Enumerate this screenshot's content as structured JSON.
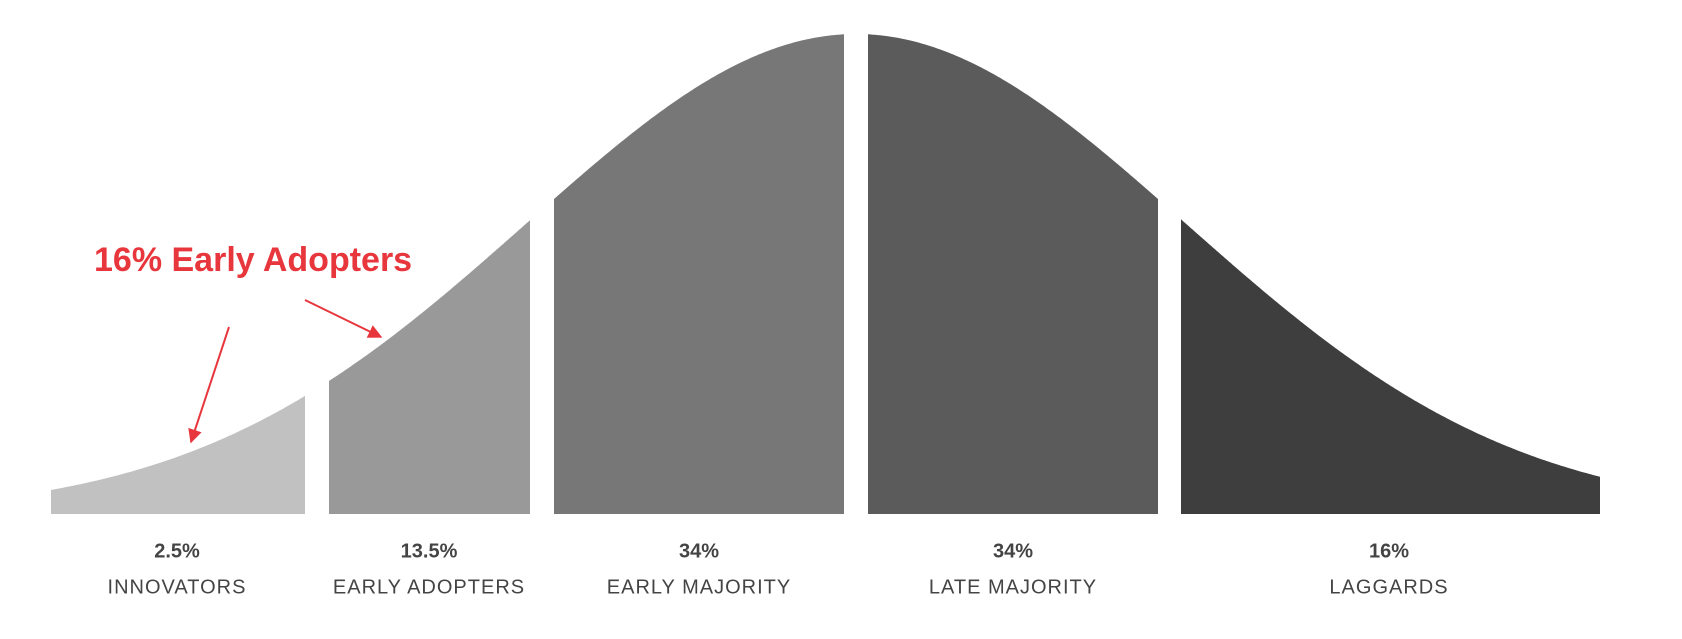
{
  "chart_data": {
    "type": "bell",
    "categories": [
      "INNOVATORS",
      "EARLY ADOPTERS",
      "EARLY MAJORITY",
      "LATE MAJORITY",
      "LAGGARDS"
    ],
    "values": [
      2.5,
      13.5,
      34,
      34,
      16
    ],
    "value_labels": [
      "2.5%",
      "13.5%",
      "34%",
      "34%",
      "16%"
    ],
    "colors": [
      "#c1c1c1",
      "#999999",
      "#777777",
      "#5b5b5b",
      "#3e3e3e"
    ],
    "annotation": "16% Early Adopters",
    "annotation_color": "#e8363d"
  }
}
